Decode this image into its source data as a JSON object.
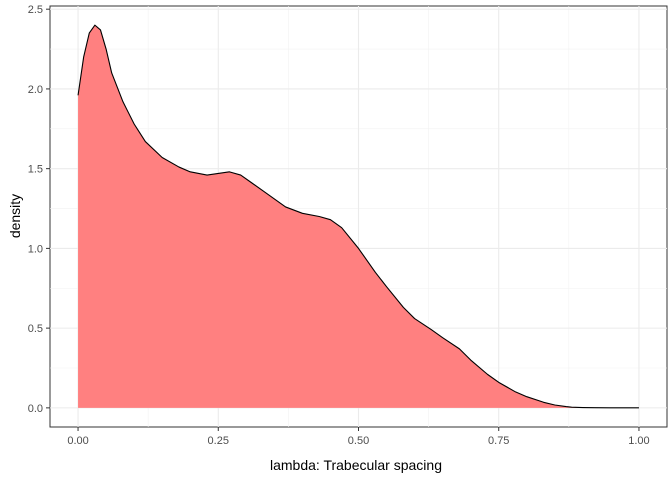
{
  "chart_data": {
    "type": "area",
    "title": "",
    "xlabel": "lambda: Trabecular spacing",
    "ylabel": "density",
    "xlim": [
      -0.05,
      1.05
    ],
    "ylim": [
      -0.12,
      2.52
    ],
    "x_ticks": [
      0,
      0.25,
      0.5,
      0.75,
      1
    ],
    "x_tick_labels": [
      "0.00",
      "0.25",
      "0.50",
      "0.75",
      "1.00"
    ],
    "y_ticks": [
      0,
      0.5,
      1,
      1.5,
      2,
      2.5
    ],
    "y_tick_labels": [
      "0.0",
      "0.5",
      "1.0",
      "1.5",
      "2.0",
      "2.5"
    ],
    "grid": true,
    "legend": "none",
    "series": [
      {
        "fill": "#ff8080",
        "stroke": "#000000",
        "x": [
          0.0,
          0.01,
          0.02,
          0.03,
          0.04,
          0.05,
          0.06,
          0.08,
          0.1,
          0.12,
          0.15,
          0.18,
          0.2,
          0.23,
          0.25,
          0.27,
          0.29,
          0.31,
          0.33,
          0.35,
          0.37,
          0.4,
          0.43,
          0.45,
          0.47,
          0.5,
          0.53,
          0.55,
          0.58,
          0.6,
          0.63,
          0.65,
          0.68,
          0.7,
          0.73,
          0.75,
          0.78,
          0.8,
          0.83,
          0.85,
          0.87,
          0.88,
          0.9,
          0.92,
          0.95,
          0.97,
          1.0
        ],
        "y": [
          1.96,
          2.2,
          2.35,
          2.4,
          2.37,
          2.25,
          2.1,
          1.92,
          1.78,
          1.67,
          1.57,
          1.51,
          1.48,
          1.46,
          1.47,
          1.48,
          1.46,
          1.41,
          1.36,
          1.31,
          1.26,
          1.22,
          1.2,
          1.18,
          1.13,
          1.0,
          0.85,
          0.76,
          0.63,
          0.56,
          0.49,
          0.44,
          0.37,
          0.3,
          0.21,
          0.16,
          0.1,
          0.07,
          0.035,
          0.018,
          0.008,
          0.004,
          0.002,
          0.001,
          0.0005,
          0.0003,
          0.0
        ]
      }
    ]
  }
}
